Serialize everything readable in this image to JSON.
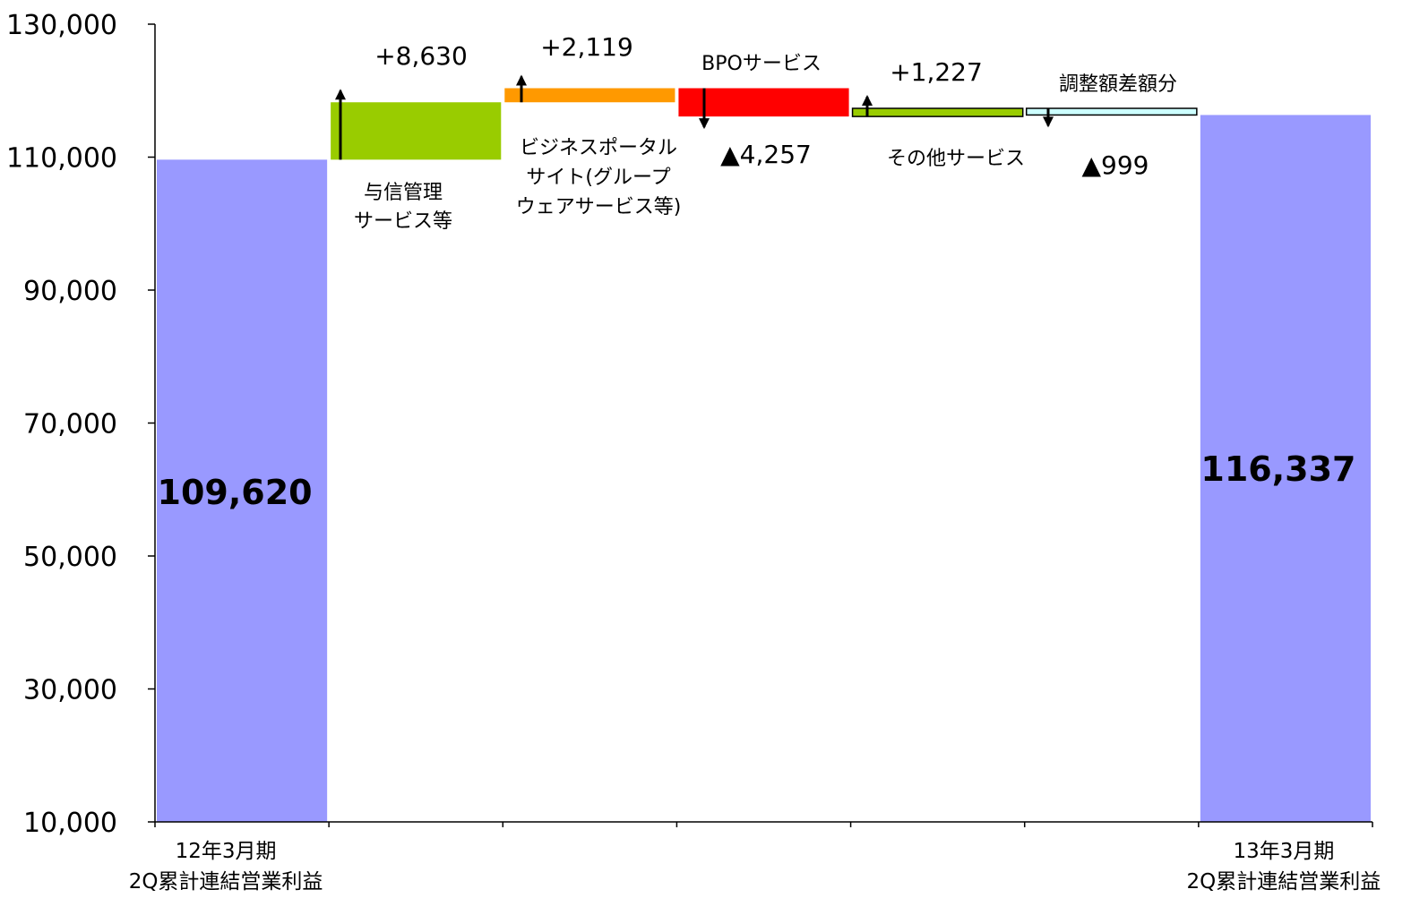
{
  "chart_data": {
    "type": "waterfall",
    "ylim": [
      10000,
      130000
    ],
    "yticks": [
      "130,000",
      "110,000",
      "90,000",
      "70,000",
      "50,000",
      "30,000",
      "10,000"
    ],
    "ytick_values": [
      130000,
      110000,
      90000,
      70000,
      50000,
      30000,
      10000
    ],
    "steps": [
      {
        "kind": "total",
        "value": 109620,
        "label": "109,620",
        "category": [
          "12年3月期",
          "2Q累計連結営業利益"
        ],
        "color": "#9999ff"
      },
      {
        "kind": "delta",
        "value": 8630,
        "label": "+8,630",
        "name": [
          "与信管理",
          "サービス等"
        ],
        "color": "#99cc00",
        "direction": "up"
      },
      {
        "kind": "delta",
        "value": 2119,
        "label": "+2,119",
        "name": [
          "ビジネスポータル",
          "サイト(グループ",
          "ウェアサービス等)"
        ],
        "color": "#ff9900",
        "direction": "up"
      },
      {
        "kind": "delta",
        "value": -4257,
        "label": "▲4,257",
        "name": [
          "BPOサービス"
        ],
        "color": "#ff0000",
        "direction": "down"
      },
      {
        "kind": "delta",
        "value": 1227,
        "label": "+1,227",
        "name": [
          "その他サービス"
        ],
        "color": "#99cc00",
        "direction": "up"
      },
      {
        "kind": "delta",
        "value": -999,
        "label": "▲999",
        "name": [
          "調整額差額分"
        ],
        "color": "#ccffff",
        "direction": "down"
      },
      {
        "kind": "total",
        "value": 116337,
        "label": "116,337",
        "category": [
          "13年3月期",
          "2Q累計連結営業利益"
        ],
        "color": "#9999ff"
      }
    ]
  }
}
